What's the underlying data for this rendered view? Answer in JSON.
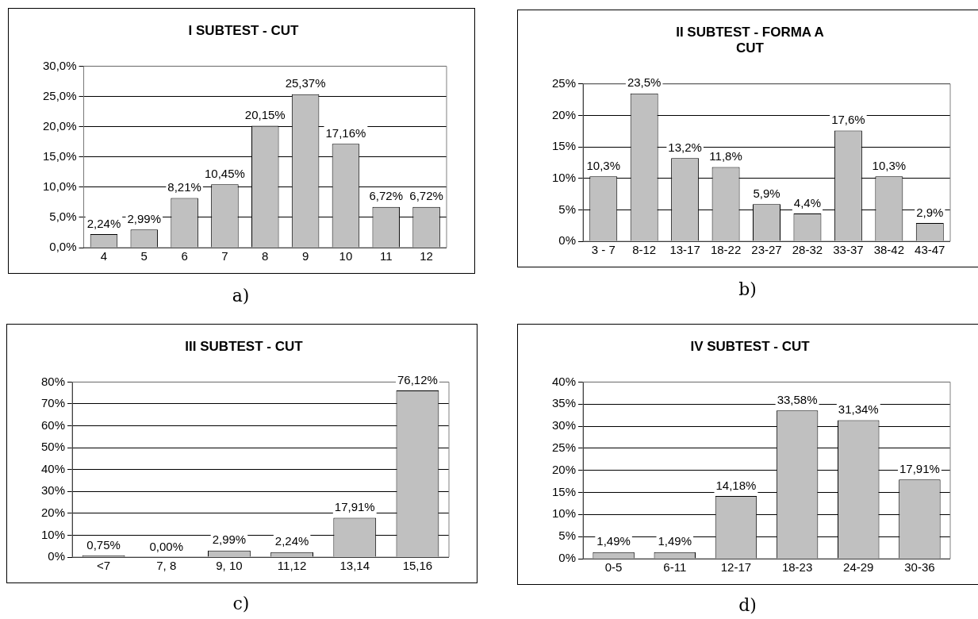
{
  "chart_data": [
    {
      "type": "bar",
      "title": "I SUBTEST - CUT",
      "categories": [
        "4",
        "5",
        "6",
        "7",
        "8",
        "9",
        "10",
        "11",
        "12"
      ],
      "values": [
        2.24,
        2.99,
        8.21,
        10.45,
        20.15,
        25.37,
        17.16,
        6.72,
        6.72
      ],
      "value_labels": [
        "2,24%",
        "2,99%",
        "8,21%",
        "10,45%",
        "20,15%",
        "25,37%",
        "17,16%",
        "6,72%",
        "6,72%"
      ],
      "color": "#c0c0c0",
      "ylim": [
        0,
        30
      ],
      "yticks": [
        {
          "value": 0,
          "label": "0,0%"
        },
        {
          "value": 5,
          "label": "5,0%"
        },
        {
          "value": 10,
          "label": "10,0%"
        },
        {
          "value": 15,
          "label": "15,0%"
        },
        {
          "value": 20,
          "label": "20,0%"
        },
        {
          "value": 25,
          "label": "25,0%"
        },
        {
          "value": 30,
          "label": "30,0%"
        }
      ],
      "grid": "y",
      "annotations": [
        "a)"
      ]
    },
    {
      "type": "bar",
      "title": "II SUBTEST - FORMA A\nCUT",
      "categories": [
        "3 - 7",
        "8-12",
        "13-17",
        "18-22",
        "23-27",
        "28-32",
        "33-37",
        "38-42",
        "43-47"
      ],
      "values": [
        10.3,
        23.5,
        13.2,
        11.8,
        5.9,
        4.4,
        17.6,
        10.3,
        2.9
      ],
      "value_labels": [
        "10,3%",
        "23,5%",
        "13,2%",
        "11,8%",
        "5,9%",
        "4,4%",
        "17,6%",
        "10,3%",
        "2,9%"
      ],
      "color": "#c0c0c0",
      "ylim": [
        0,
        25
      ],
      "yticks": [
        {
          "value": 0,
          "label": "0%"
        },
        {
          "value": 5,
          "label": "5%"
        },
        {
          "value": 10,
          "label": "10%"
        },
        {
          "value": 15,
          "label": "15%"
        },
        {
          "value": 20,
          "label": "20%"
        },
        {
          "value": 25,
          "label": "25%"
        }
      ],
      "grid": "y",
      "annotations": [
        "b)"
      ]
    },
    {
      "type": "bar",
      "title": "III SUBTEST - CUT",
      "categories": [
        "<7",
        "7, 8",
        "9, 10",
        "11,12",
        "13,14",
        "15,16"
      ],
      "values": [
        0.75,
        0,
        2.99,
        2.24,
        17.91,
        76.12
      ],
      "value_labels": [
        "0,75%",
        "0,00%",
        "2,99%",
        "2,24%",
        "17,91%",
        "76,12%"
      ],
      "color": "#c0c0c0",
      "ylim": [
        0,
        80
      ],
      "yticks": [
        {
          "value": 0,
          "label": "0%"
        },
        {
          "value": 10,
          "label": "10%"
        },
        {
          "value": 20,
          "label": "20%"
        },
        {
          "value": 30,
          "label": "30%"
        },
        {
          "value": 40,
          "label": "40%"
        },
        {
          "value": 50,
          "label": "50%"
        },
        {
          "value": 60,
          "label": "60%"
        },
        {
          "value": 70,
          "label": "70%"
        },
        {
          "value": 80,
          "label": "80%"
        }
      ],
      "grid": "y",
      "annotations": [
        "c)"
      ]
    },
    {
      "type": "bar",
      "title": "IV SUBTEST - CUT",
      "categories": [
        "0-5",
        "6-11",
        "12-17",
        "18-23",
        "24-29",
        "30-36"
      ],
      "values": [
        1.49,
        1.49,
        14.18,
        33.58,
        31.34,
        17.91
      ],
      "value_labels": [
        "1,49%",
        "1,49%",
        "14,18%",
        "33,58%",
        "31,34%",
        "17,91%"
      ],
      "color": "#c0c0c0",
      "ylim": [
        0,
        40
      ],
      "yticks": [
        {
          "value": 0,
          "label": "0%"
        },
        {
          "value": 5,
          "label": "5%"
        },
        {
          "value": 10,
          "label": "10%"
        },
        {
          "value": 15,
          "label": "15%"
        },
        {
          "value": 20,
          "label": "20%"
        },
        {
          "value": 25,
          "label": "25%"
        },
        {
          "value": 30,
          "label": "30%"
        },
        {
          "value": 35,
          "label": "35%"
        },
        {
          "value": 40,
          "label": "40%"
        }
      ],
      "grid": "y",
      "annotations": [
        "d)"
      ]
    }
  ]
}
